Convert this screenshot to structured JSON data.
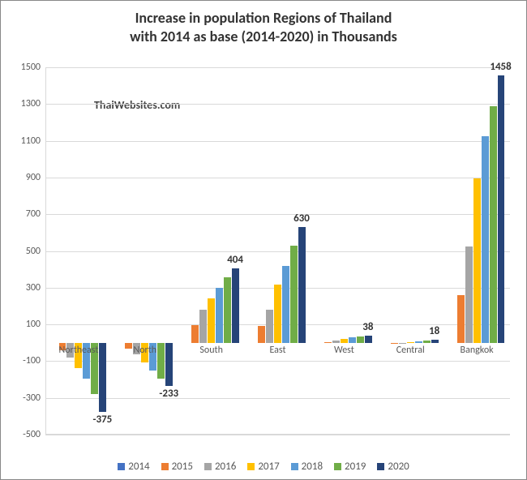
{
  "chart": {
    "type": "bar",
    "title_line1": "Increase in population Regions of Thailand",
    "title_line2": "with 2014 as base (2014-2020) in Thousands",
    "title_fontsize": 18,
    "watermark": "ThaiWebsites.com",
    "background_color": "#ffffff",
    "grid_color": "#d9d9d9",
    "axis_color": "#d9d9d9",
    "label_color": "#595959",
    "ylim": [
      -500,
      1500
    ],
    "ytick_step": 200,
    "yticks": [
      -500,
      -300,
      -100,
      100,
      300,
      500,
      700,
      900,
      1100,
      1300,
      1500
    ],
    "categories": [
      "Northeast",
      "North",
      "South",
      "East",
      "West",
      "Central",
      "Bangkok"
    ],
    "series": [
      {
        "name": "2014",
        "color": "#4472c4",
        "values": [
          0,
          0,
          0,
          0,
          0,
          0,
          0
        ]
      },
      {
        "name": "2015",
        "color": "#ed7d31",
        "values": [
          -40,
          -30,
          95,
          90,
          5,
          -5,
          260
        ]
      },
      {
        "name": "2016",
        "color": "#a5a5a5",
        "values": [
          -80,
          -65,
          180,
          180,
          12,
          -2,
          525
        ]
      },
      {
        "name": "2017",
        "color": "#ffc000",
        "values": [
          -140,
          -105,
          240,
          315,
          20,
          3,
          895
        ]
      },
      {
        "name": "2018",
        "color": "#5b9bd5",
        "values": [
          -195,
          -150,
          300,
          420,
          28,
          8,
          1125
        ]
      },
      {
        "name": "2019",
        "color": "#70ad47",
        "values": [
          -280,
          -195,
          355,
          530,
          34,
          13,
          1290
        ]
      },
      {
        "name": "2020",
        "color": "#264478",
        "values": [
          -375,
          -233,
          404,
          630,
          38,
          18,
          1458
        ]
      }
    ],
    "end_labels": [
      {
        "category": 0,
        "text": "-375",
        "value": -375,
        "below": true
      },
      {
        "category": 1,
        "text": "-233",
        "value": -233,
        "below": true
      },
      {
        "category": 2,
        "text": "404",
        "value": 404,
        "below": false
      },
      {
        "category": 3,
        "text": "630",
        "value": 630,
        "below": false
      },
      {
        "category": 4,
        "text": "38",
        "value": 38,
        "below": false
      },
      {
        "category": 5,
        "text": "18",
        "value": 18,
        "below": false
      },
      {
        "category": 6,
        "text": "1458",
        "value": 1458,
        "below": false
      }
    ]
  }
}
